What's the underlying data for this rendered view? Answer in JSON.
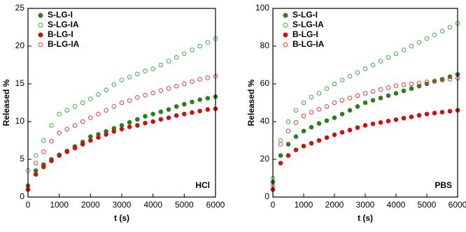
{
  "chart_data": [
    {
      "type": "scatter",
      "annotation": "HCl",
      "xlabel": "t (s)",
      "ylabel": "Released %",
      "xlim": [
        0,
        6000
      ],
      "xticks": [
        0,
        1000,
        2000,
        3000,
        4000,
        5000,
        6000
      ],
      "ylim": [
        0,
        25
      ],
      "yticks": [
        0,
        5,
        10,
        15,
        20,
        25
      ],
      "legend": "upper left",
      "x": [
        0,
        250,
        500,
        750,
        1000,
        1250,
        1500,
        1750,
        2000,
        2250,
        2500,
        2750,
        3000,
        3250,
        3500,
        3750,
        4000,
        4250,
        4500,
        4750,
        5000,
        5250,
        5500,
        5750,
        6000
      ],
      "series": [
        {
          "name": "S-LG-I",
          "color": "#2e7d1e",
          "filled": true,
          "values": [
            1.5,
            3.5,
            4.3,
            5.0,
            5.6,
            6.1,
            6.7,
            7.3,
            8.0,
            8.3,
            8.7,
            9.1,
            9.5,
            9.9,
            10.3,
            10.7,
            11.0,
            11.3,
            11.6,
            12.0,
            12.3,
            12.6,
            12.9,
            13.1,
            13.3
          ]
        },
        {
          "name": "S-LG-IA",
          "color": "#3cb043",
          "filled": false,
          "values": [
            3.5,
            5.5,
            7.5,
            9.5,
            11.0,
            11.5,
            12.0,
            12.5,
            13.0,
            13.6,
            14.2,
            14.9,
            15.5,
            15.9,
            16.3,
            16.7,
            17.0,
            17.5,
            18.0,
            18.5,
            19.0,
            19.5,
            20.0,
            20.5,
            21.0
          ]
        },
        {
          "name": "B-LG-I",
          "color": "#cc1111",
          "filled": true,
          "values": [
            1.0,
            3.0,
            4.0,
            4.8,
            5.5,
            6.0,
            6.5,
            7.0,
            7.5,
            7.9,
            8.3,
            8.7,
            9.0,
            9.3,
            9.5,
            9.8,
            10.0,
            10.3,
            10.5,
            10.8,
            11.0,
            11.2,
            11.4,
            11.6,
            11.7
          ]
        },
        {
          "name": "B-LG-IA",
          "color": "#e83c3c",
          "filled": false,
          "values": [
            1.5,
            4.5,
            6.0,
            7.4,
            8.5,
            9.0,
            9.5,
            10.0,
            10.5,
            11.0,
            11.5,
            12.0,
            12.5,
            12.8,
            13.2,
            13.5,
            13.8,
            14.1,
            14.4,
            14.7,
            15.0,
            15.3,
            15.6,
            15.8,
            16.0
          ]
        }
      ]
    },
    {
      "type": "scatter",
      "annotation": "PBS",
      "xlabel": "t (s)",
      "ylabel": "Released %",
      "xlim": [
        0,
        6000
      ],
      "xticks": [
        0,
        1000,
        2000,
        3000,
        4000,
        5000,
        6000
      ],
      "ylim": [
        0,
        100
      ],
      "yticks": [
        0,
        20,
        40,
        60,
        80,
        100
      ],
      "legend": "upper left",
      "x": [
        0,
        250,
        500,
        750,
        1000,
        1250,
        1500,
        1750,
        2000,
        2250,
        2500,
        2750,
        3000,
        3250,
        3500,
        3750,
        4000,
        4250,
        4500,
        4750,
        5000,
        5250,
        5500,
        5750,
        6000
      ],
      "series": [
        {
          "name": "S-LG-I",
          "color": "#2e7d1e",
          "filled": true,
          "values": [
            8,
            22,
            28,
            32,
            35,
            37,
            39,
            40.5,
            42,
            44,
            46,
            48,
            50,
            51.3,
            52.5,
            53.8,
            55,
            56.3,
            57.5,
            58.8,
            60,
            61.3,
            62.5,
            63.8,
            65
          ]
        },
        {
          "name": "S-LG-IA",
          "color": "#3cb043",
          "filled": false,
          "values": [
            10,
            30,
            40,
            46,
            50,
            53,
            55,
            57.5,
            60,
            62,
            64,
            66,
            68,
            70,
            72,
            74,
            76,
            78,
            80,
            82,
            84,
            86,
            88,
            90,
            92
          ]
        },
        {
          "name": "B-LG-I",
          "color": "#cc1111",
          "filled": true,
          "values": [
            4,
            18,
            22,
            25,
            27,
            28.5,
            30,
            31.5,
            33,
            34.3,
            35.5,
            36.8,
            38,
            38.8,
            39.5,
            40.3,
            41,
            41.8,
            42.5,
            43.3,
            44,
            44.5,
            45,
            45.5,
            46
          ]
        },
        {
          "name": "B-LG-IA",
          "color": "#e83c3c",
          "filled": false,
          "values": [
            6,
            28,
            35,
            39.5,
            43,
            45,
            46.5,
            48,
            50,
            51.3,
            52.5,
            53.8,
            55,
            56,
            57,
            58,
            59,
            59.5,
            60,
            60.5,
            61,
            61.5,
            62,
            62.5,
            63
          ]
        }
      ]
    }
  ]
}
